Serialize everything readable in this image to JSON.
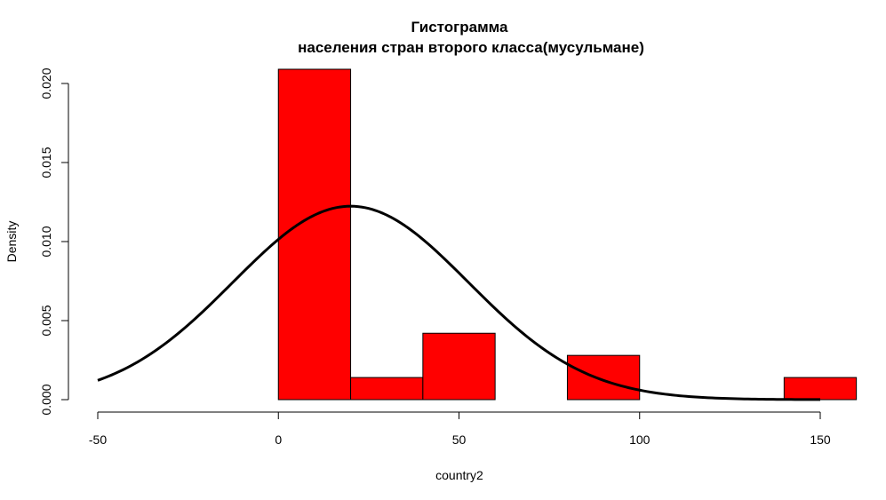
{
  "chart_data": {
    "type": "bar",
    "title": "Гистограмма",
    "subtitle": "населения стран второго класса(мусульмане)",
    "xlabel": "country2",
    "ylabel": "Density",
    "xlim": [
      -50,
      150
    ],
    "ylim": [
      0,
      0.021
    ],
    "x_ticks": [
      -50,
      0,
      50,
      100,
      150
    ],
    "x_tick_labels": [
      "-50",
      "0",
      "50",
      "100",
      "150"
    ],
    "y_ticks": [
      0,
      0.005,
      0.01,
      0.015,
      0.02
    ],
    "y_tick_labels": [
      "0.000",
      "0.005",
      "0.010",
      "0.015",
      "0.020"
    ],
    "bins": [
      {
        "x0": 0,
        "x1": 20,
        "density": 0.0209
      },
      {
        "x0": 20,
        "x1": 40,
        "density": 0.0014
      },
      {
        "x0": 40,
        "x1": 60,
        "density": 0.0042
      },
      {
        "x0": 60,
        "x1": 80,
        "density": 0
      },
      {
        "x0": 80,
        "x1": 100,
        "density": 0.0028
      },
      {
        "x0": 100,
        "x1": 120,
        "density": 0
      },
      {
        "x0": 120,
        "x1": 140,
        "density": 0
      },
      {
        "x0": 140,
        "x1": 160,
        "density": 0.0014
      }
    ],
    "bar_color": "#ff0000",
    "curve": {
      "type": "normal-density",
      "mean": 20,
      "sd": 32.6,
      "x_range": [
        -50,
        150
      ],
      "color": "#000000"
    },
    "grid": false
  }
}
